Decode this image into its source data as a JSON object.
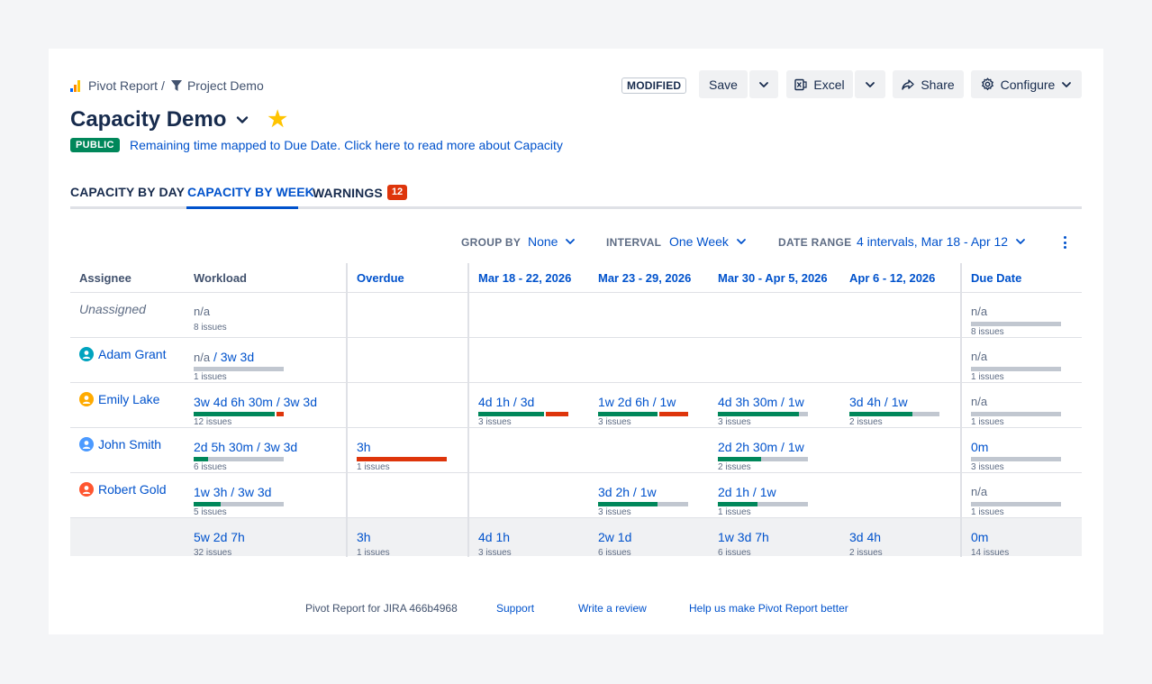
{
  "breadcrumb": {
    "app": "Pivot Report",
    "separator": "/",
    "project": "Project Demo"
  },
  "title": "Capacity Demo",
  "visibility_badge": "PUBLIC",
  "info_link": "Remaining time mapped to Due Date. Click here to read more about Capacity",
  "toolbar": {
    "modified": "MODIFIED",
    "save": "Save",
    "excel": "Excel",
    "share": "Share",
    "configure": "Configure"
  },
  "tabs": [
    {
      "label": "CAPACITY BY DAY"
    },
    {
      "label": "CAPACITY BY WEEK",
      "active": true
    },
    {
      "label": "WARNINGS",
      "badge": "12"
    }
  ],
  "filters": {
    "group_by": {
      "label": "GROUP BY",
      "value": "None"
    },
    "interval": {
      "label": "INTERVAL",
      "value": "One Week"
    },
    "date_range": {
      "label": "DATE RANGE",
      "value": "4 intervals, Mar 18 - Apr 12"
    }
  },
  "table": {
    "headers": [
      "Assignee",
      "Workload",
      "Overdue",
      "Mar 18 - 22, 2026",
      "Mar 23 - 29, 2026",
      "Mar 30 - Apr 5, 2026",
      "Apr 6 - 12, 2026",
      "Due Date"
    ],
    "rows": [
      {
        "assignee": "Unassigned",
        "workload": {
          "value": "n/a",
          "issues": "8 issues"
        },
        "overdue": null,
        "weeks": [
          null,
          null,
          null,
          null
        ],
        "due": {
          "value": "n/a",
          "issues": "8 issues",
          "bar": [
            0,
            0
          ]
        }
      },
      {
        "assignee": "Adam Grant",
        "avatar_color": "#00a3bf",
        "avatar_icon": "person-avatar-icon",
        "workload": {
          "value": "n/a",
          "capacity": " / 3w 3d",
          "issues": "1 issues",
          "bar": [
            0,
            0
          ]
        },
        "overdue": null,
        "weeks": [
          null,
          null,
          null,
          null
        ],
        "due": {
          "value": "n/a",
          "issues": "1 issues",
          "bar": [
            0,
            0
          ]
        }
      },
      {
        "assignee": "Emily Lake",
        "avatar_color": "#ffab00",
        "avatar_icon": "person-avatar-icon",
        "workload": {
          "value": "3w 4d 6h 30m",
          "capacity": " / 3w 3d",
          "issues": "12 issues",
          "bar": [
            0.92,
            0.08
          ]
        },
        "overdue": null,
        "weeks": [
          {
            "value": "4d 1h",
            "capacity": " / 3d",
            "issues": "3 issues",
            "bar": [
              0.74,
              0.26
            ]
          },
          {
            "value": "1w 2d 6h",
            "capacity": " / 1w",
            "issues": "3 issues",
            "bar": [
              0.67,
              0.33
            ]
          },
          {
            "value": "4d 3h 30m",
            "capacity": " / 1w",
            "issues": "3 issues",
            "bar": [
              0.9,
              0
            ]
          },
          {
            "value": "3d 4h",
            "capacity": " / 1w",
            "issues": "2 issues",
            "bar": [
              0.7,
              0
            ]
          }
        ],
        "due": {
          "value": "n/a",
          "issues": "1 issues",
          "bar": [
            0,
            0
          ]
        }
      },
      {
        "assignee": "John Smith",
        "avatar_color": "#4c9aff",
        "avatar_icon": "person-avatar-icon",
        "workload": {
          "value": "2d 5h 30m",
          "capacity": " / 3w 3d",
          "issues": "6 issues",
          "bar": [
            0.16,
            0
          ]
        },
        "overdue": {
          "value": "3h",
          "issues": "1 issues",
          "bar": [
            0,
            1
          ]
        },
        "weeks": [
          null,
          null,
          {
            "value": "2d 2h 30m",
            "capacity": " / 1w",
            "issues": "2 issues",
            "bar": [
              0.48,
              0
            ]
          },
          null
        ],
        "due": {
          "value": "0m",
          "issues": "3 issues",
          "bar": [
            0,
            0
          ]
        }
      },
      {
        "assignee": "Robert Gold",
        "avatar_color": "#ff5630",
        "avatar_icon": "person-avatar-icon",
        "workload": {
          "value": "1w 3h",
          "capacity": " / 3w 3d",
          "issues": "5 issues",
          "bar": [
            0.3,
            0
          ]
        },
        "overdue": null,
        "weeks": [
          null,
          {
            "value": "3d 2h",
            "capacity": " / 1w",
            "issues": "3 issues",
            "bar": [
              0.66,
              0
            ]
          },
          {
            "value": "2d 1h",
            "capacity": " / 1w",
            "issues": "1 issues",
            "bar": [
              0.44,
              0
            ]
          },
          null
        ],
        "due": {
          "value": "n/a",
          "issues": "1 issues",
          "bar": [
            0,
            0
          ]
        }
      }
    ],
    "totals": {
      "workload": {
        "value": "5w 2d 7h",
        "issues": "32 issues"
      },
      "overdue": {
        "value": "3h",
        "issues": "1 issues"
      },
      "weeks": [
        {
          "value": "4d 1h",
          "issues": "3 issues"
        },
        {
          "value": "2w 1d",
          "issues": "6 issues"
        },
        {
          "value": "1w 3d 7h",
          "issues": "6 issues"
        },
        {
          "value": "3d 4h",
          "issues": "2 issues"
        }
      ],
      "due": {
        "value": "0m",
        "issues": "14 issues"
      }
    }
  },
  "colors": {
    "ok": "#00875a",
    "over": "#de350b",
    "empty": "#c1c7d0",
    "link": "#0052cc"
  },
  "footer": {
    "version": "Pivot Report for JIRA 466b4968",
    "support": "Support",
    "review": "Write a review",
    "feedback": "Help us make Pivot Report better"
  }
}
